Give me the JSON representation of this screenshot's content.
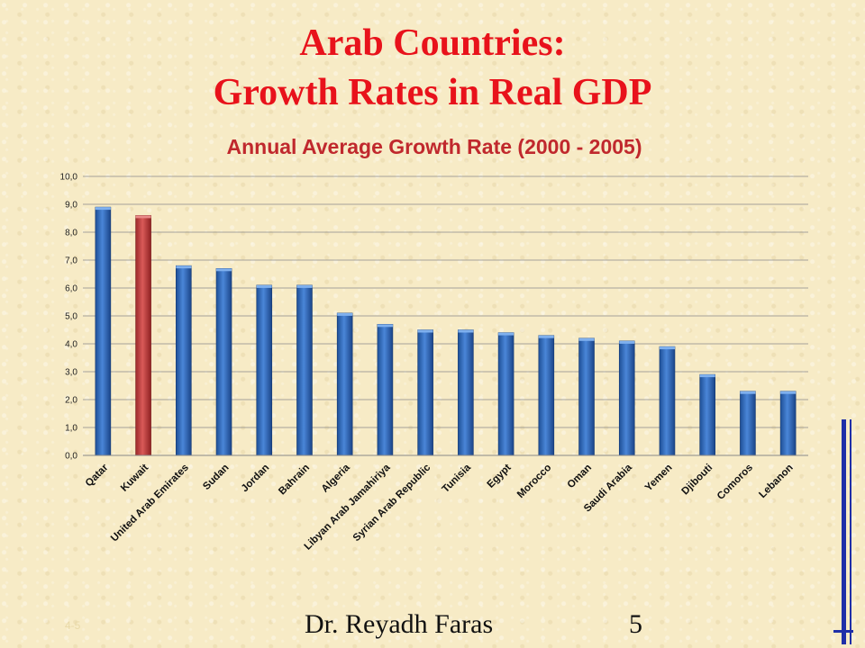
{
  "slide": {
    "title_line1": "Arab Countries:",
    "title_line2": "Growth Rates in Real GDP",
    "author": "Dr. Reyadh Faras",
    "page_number": "5",
    "code": "4-5"
  },
  "colors": {
    "title": "#e8121b",
    "chart_title": "#c0282d",
    "bar_default": "#2f66b8",
    "bar_highlight": "#c0393b",
    "accent_rule": "#1f2fa8"
  },
  "chart_data": {
    "type": "bar",
    "title": "Annual Average Growth Rate (2000 - 2005)",
    "xlabel": "",
    "ylabel": "",
    "ylim": [
      0,
      10
    ],
    "grid": true,
    "legend": "none",
    "yticks": [
      "0,0",
      "1,0",
      "2,0",
      "3,0",
      "4,0",
      "5,0",
      "6,0",
      "7,0",
      "8,0",
      "9,0",
      "10,0"
    ],
    "categories": [
      "Qatar",
      "Kuwait",
      "United Arab Emirates",
      "Sudan",
      "Jordan",
      "Bahrain",
      "Algeria",
      "Libyan Arab Jamahiriya",
      "Syrian Arab Republic",
      "Tunisia",
      "Egypt",
      "Morocco",
      "Oman",
      "Saudi Arabia",
      "Yemen",
      "Djibouti",
      "Comoros",
      "Lebanon"
    ],
    "values": [
      8.9,
      8.6,
      6.8,
      6.7,
      6.1,
      6.1,
      5.1,
      4.7,
      4.5,
      4.5,
      4.4,
      4.3,
      4.2,
      4.1,
      3.9,
      2.9,
      2.3,
      2.3
    ],
    "highlight": [
      "Kuwait"
    ]
  }
}
